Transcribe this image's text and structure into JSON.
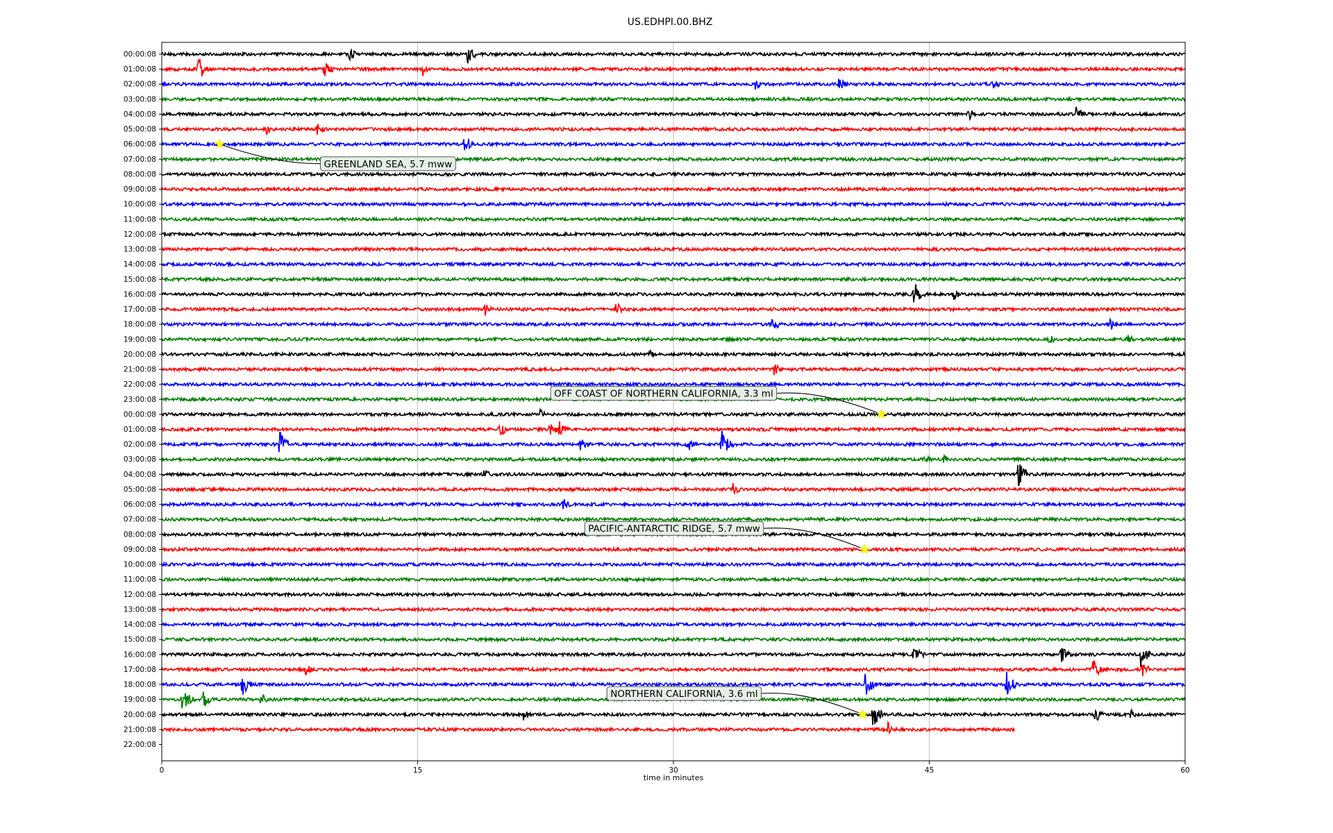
{
  "chart_data": {
    "type": "line",
    "chart_kind": "seismogram-helicorder",
    "title": "US.EDHPI.00.BHZ",
    "xlabel": "time in minutes",
    "ylabel": "",
    "xlim": [
      0,
      60
    ],
    "x_ticks": [
      "0",
      "15",
      "30",
      "45",
      "60"
    ],
    "grid": "vertical",
    "row_labels": [
      "00:00:08",
      "01:00:08",
      "02:00:08",
      "03:00:08",
      "04:00:08",
      "05:00:08",
      "06:00:08",
      "07:00:08",
      "08:00:08",
      "09:00:08",
      "10:00:08",
      "11:00:08",
      "12:00:08",
      "13:00:08",
      "14:00:08",
      "15:00:08",
      "16:00:08",
      "17:00:08",
      "18:00:08",
      "19:00:08",
      "20:00:08",
      "21:00:08",
      "22:00:08",
      "23:00:08",
      "00:00:08",
      "01:00:08",
      "02:00:08",
      "03:00:08",
      "04:00:08",
      "05:00:08",
      "06:00:08",
      "07:00:08",
      "08:00:08",
      "09:00:08",
      "10:00:08",
      "11:00:08",
      "12:00:08",
      "13:00:08",
      "14:00:08",
      "15:00:08",
      "16:00:08",
      "17:00:08",
      "18:00:08",
      "19:00:08",
      "20:00:08",
      "21:00:08",
      "22:00:08"
    ],
    "trace_colors": [
      "#000000",
      "#ff0000",
      "#0000ff",
      "#008000"
    ],
    "trace_end_minutes": {
      "45": 50,
      "46": 0
    },
    "bursts": [
      {
        "row": 0,
        "t": 11,
        "amp": 1.0
      },
      {
        "row": 0,
        "t": 17.9,
        "amp": 1.4
      },
      {
        "row": 1,
        "t": 2.1,
        "amp": 1.8
      },
      {
        "row": 1,
        "t": 9.5,
        "amp": 1.2
      },
      {
        "row": 1,
        "t": 15.3,
        "amp": 0.9
      },
      {
        "row": 2,
        "t": 34.8,
        "amp": 0.8
      },
      {
        "row": 2,
        "t": 39.7,
        "amp": 0.9
      },
      {
        "row": 2,
        "t": 48.7,
        "amp": 0.8
      },
      {
        "row": 4,
        "t": 47.3,
        "amp": 0.8
      },
      {
        "row": 4,
        "t": 53.6,
        "amp": 1.0
      },
      {
        "row": 5,
        "t": 6.1,
        "amp": 0.8
      },
      {
        "row": 5,
        "t": 9.1,
        "amp": 0.8
      },
      {
        "row": 6,
        "t": 17.7,
        "amp": 1.7
      },
      {
        "row": 16,
        "t": 44.1,
        "amp": 1.9
      },
      {
        "row": 16,
        "t": 46.4,
        "amp": 0.8
      },
      {
        "row": 17,
        "t": 18.9,
        "amp": 1.0
      },
      {
        "row": 17,
        "t": 26.6,
        "amp": 1.0
      },
      {
        "row": 18,
        "t": 35.8,
        "amp": 1.0
      },
      {
        "row": 18,
        "t": 55.6,
        "amp": 0.8
      },
      {
        "row": 19,
        "t": 52.0,
        "amp": 0.7
      },
      {
        "row": 19,
        "t": 56.6,
        "amp": 0.8
      },
      {
        "row": 20,
        "t": 28.6,
        "amp": 0.7
      },
      {
        "row": 20,
        "t": 60.0,
        "amp": 1.4
      },
      {
        "row": 21,
        "t": 35.9,
        "amp": 0.8
      },
      {
        "row": 24,
        "t": 22.1,
        "amp": 0.8
      },
      {
        "row": 25,
        "t": 19.8,
        "amp": 1.0
      },
      {
        "row": 25,
        "t": 22.7,
        "amp": 1.2
      },
      {
        "row": 25,
        "t": 23.3,
        "amp": 1.2
      },
      {
        "row": 26,
        "t": 6.9,
        "amp": 1.9
      },
      {
        "row": 26,
        "t": 24.5,
        "amp": 1.4
      },
      {
        "row": 26,
        "t": 30.8,
        "amp": 1.2
      },
      {
        "row": 26,
        "t": 32.8,
        "amp": 2.0
      },
      {
        "row": 27,
        "t": 44.7,
        "amp": 0.7
      },
      {
        "row": 27,
        "t": 45.8,
        "amp": 0.7
      },
      {
        "row": 28,
        "t": 18.9,
        "amp": 0.7
      },
      {
        "row": 28,
        "t": 50.2,
        "amp": 2.0
      },
      {
        "row": 29,
        "t": 33.5,
        "amp": 0.8
      },
      {
        "row": 30,
        "t": 23.5,
        "amp": 0.9
      },
      {
        "row": 40,
        "t": 44.1,
        "amp": 1.4
      },
      {
        "row": 40,
        "t": 52.7,
        "amp": 1.4
      },
      {
        "row": 40,
        "t": 57.4,
        "amp": 1.7
      },
      {
        "row": 41,
        "t": 8.4,
        "amp": 0.8
      },
      {
        "row": 41,
        "t": 54.6,
        "amp": 1.4
      },
      {
        "row": 41,
        "t": 57.5,
        "amp": 1.0
      },
      {
        "row": 42,
        "t": 4.7,
        "amp": 1.6
      },
      {
        "row": 42,
        "t": 41.2,
        "amp": 2.0
      },
      {
        "row": 42,
        "t": 49.5,
        "amp": 1.8
      },
      {
        "row": 43,
        "t": 1.2,
        "amp": 1.9
      },
      {
        "row": 43,
        "t": 2.4,
        "amp": 1.3
      },
      {
        "row": 43,
        "t": 5.8,
        "amp": 0.9
      },
      {
        "row": 44,
        "t": 21.2,
        "amp": 0.8
      },
      {
        "row": 44,
        "t": 41.7,
        "amp": 1.8
      },
      {
        "row": 44,
        "t": 54.7,
        "amp": 1.2
      },
      {
        "row": 44,
        "t": 56.8,
        "amp": 0.8
      },
      {
        "row": 45,
        "t": 42.5,
        "amp": 1.2
      }
    ],
    "events": [
      {
        "label": "GREENLAND SEA, 5.7 mww",
        "row": 6,
        "t": 3.4,
        "label_row": 7.3,
        "label_t": 9.3
      },
      {
        "label": "OFF COAST OF NORTHERN CALIFORNIA, 3.3 ml",
        "row": 24,
        "t": 42.2,
        "label_row": 22.6,
        "label_t": 22.8
      },
      {
        "label": "PACIFIC-ANTARCTIC RIDGE, 5.7 mww",
        "row": 33,
        "t": 41.2,
        "label_row": 31.6,
        "label_t": 24.8
      },
      {
        "label": "NORTHERN CALIFORNIA, 3.6 ml",
        "row": 44,
        "t": 41.1,
        "label_row": 42.6,
        "label_t": 26.1
      }
    ],
    "marker": {
      "shape": "star",
      "color": "#ffff00"
    }
  }
}
